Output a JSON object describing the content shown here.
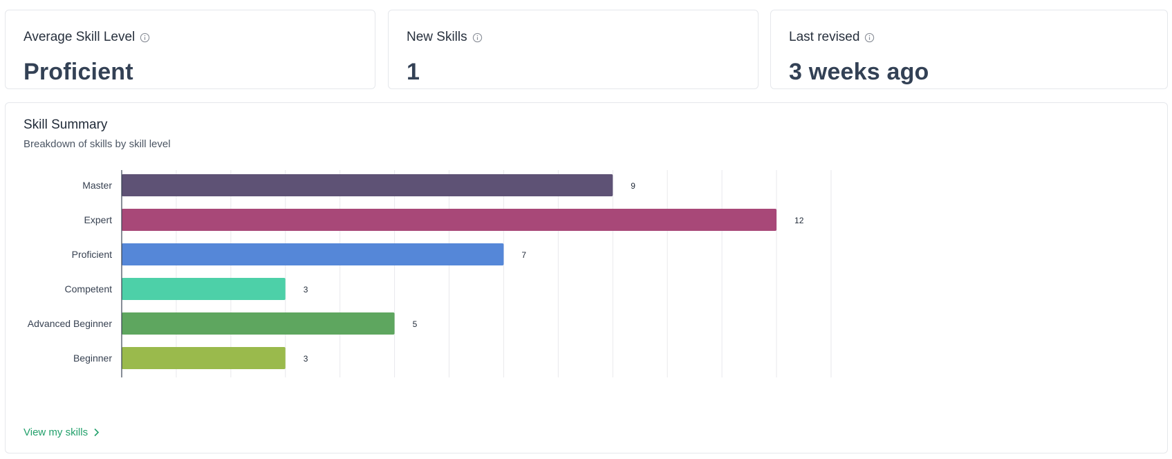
{
  "stats": [
    {
      "label": "Average Skill Level",
      "value": "Proficient"
    },
    {
      "label": "New Skills",
      "value": "1"
    },
    {
      "label": "Last revised",
      "value": "3 weeks ago"
    }
  ],
  "summary": {
    "title": "Skill Summary",
    "subtitle": "Breakdown of skills by skill level",
    "link_label": "View my skills"
  },
  "chart_data": {
    "type": "bar",
    "orientation": "horizontal",
    "categories": [
      "Master",
      "Expert",
      "Proficient",
      "Competent",
      "Advanced Beginner",
      "Beginner"
    ],
    "values": [
      9,
      12,
      7,
      3,
      5,
      3
    ],
    "colors": [
      "#5e5275",
      "#a84878",
      "#5587d8",
      "#4dd0a8",
      "#5ea65f",
      "#9aba4c"
    ],
    "xlim": [
      0,
      13.5
    ],
    "grid": true,
    "legend": "none"
  }
}
